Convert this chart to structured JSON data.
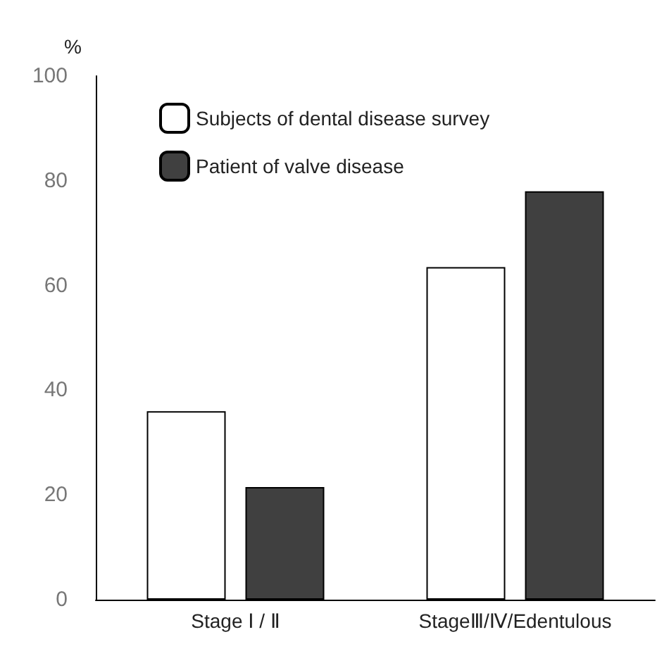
{
  "chart_data": {
    "type": "bar",
    "ylabel": "%",
    "categories": [
      "Stage Ⅰ / Ⅱ",
      "StageⅢ/Ⅳ/Edentulous"
    ],
    "series": [
      {
        "name": "Subjects of dental disease survey",
        "color": "#ffffff",
        "values": [
          36,
          63.5
        ]
      },
      {
        "name": "Patient of valve disease",
        "color": "#404040",
        "values": [
          21.5,
          78
        ]
      }
    ],
    "ylim": [
      0,
      100
    ],
    "yticks": [
      0,
      20,
      40,
      60,
      80,
      100
    ],
    "grid": false,
    "legend": "top left"
  }
}
